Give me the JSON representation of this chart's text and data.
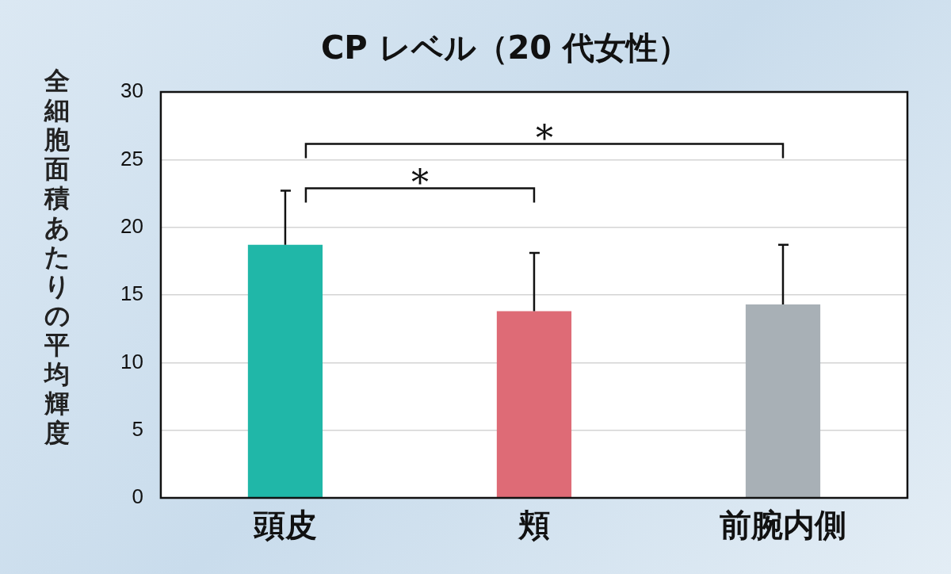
{
  "chart_data": {
    "type": "bar",
    "title": "CP レベル（20 代女性）",
    "ylabel": "全細胞面積あたりの平均輝度",
    "categories": [
      "頭皮",
      "頬",
      "前腕内側"
    ],
    "values": [
      18.7,
      13.8,
      14.3
    ],
    "colors": [
      "#20b7a8",
      "#de6b76",
      "#a8b0b6"
    ],
    "errors": [
      [
        18.7,
        22.7
      ],
      [
        13.8,
        18.1
      ],
      [
        14.3,
        18.7
      ]
    ],
    "ylim": [
      0,
      30
    ],
    "yticks": [
      0,
      5,
      10,
      15,
      20,
      25,
      30
    ],
    "grid": "y",
    "legend": false,
    "annotations": [
      "*",
      "*"
    ]
  }
}
